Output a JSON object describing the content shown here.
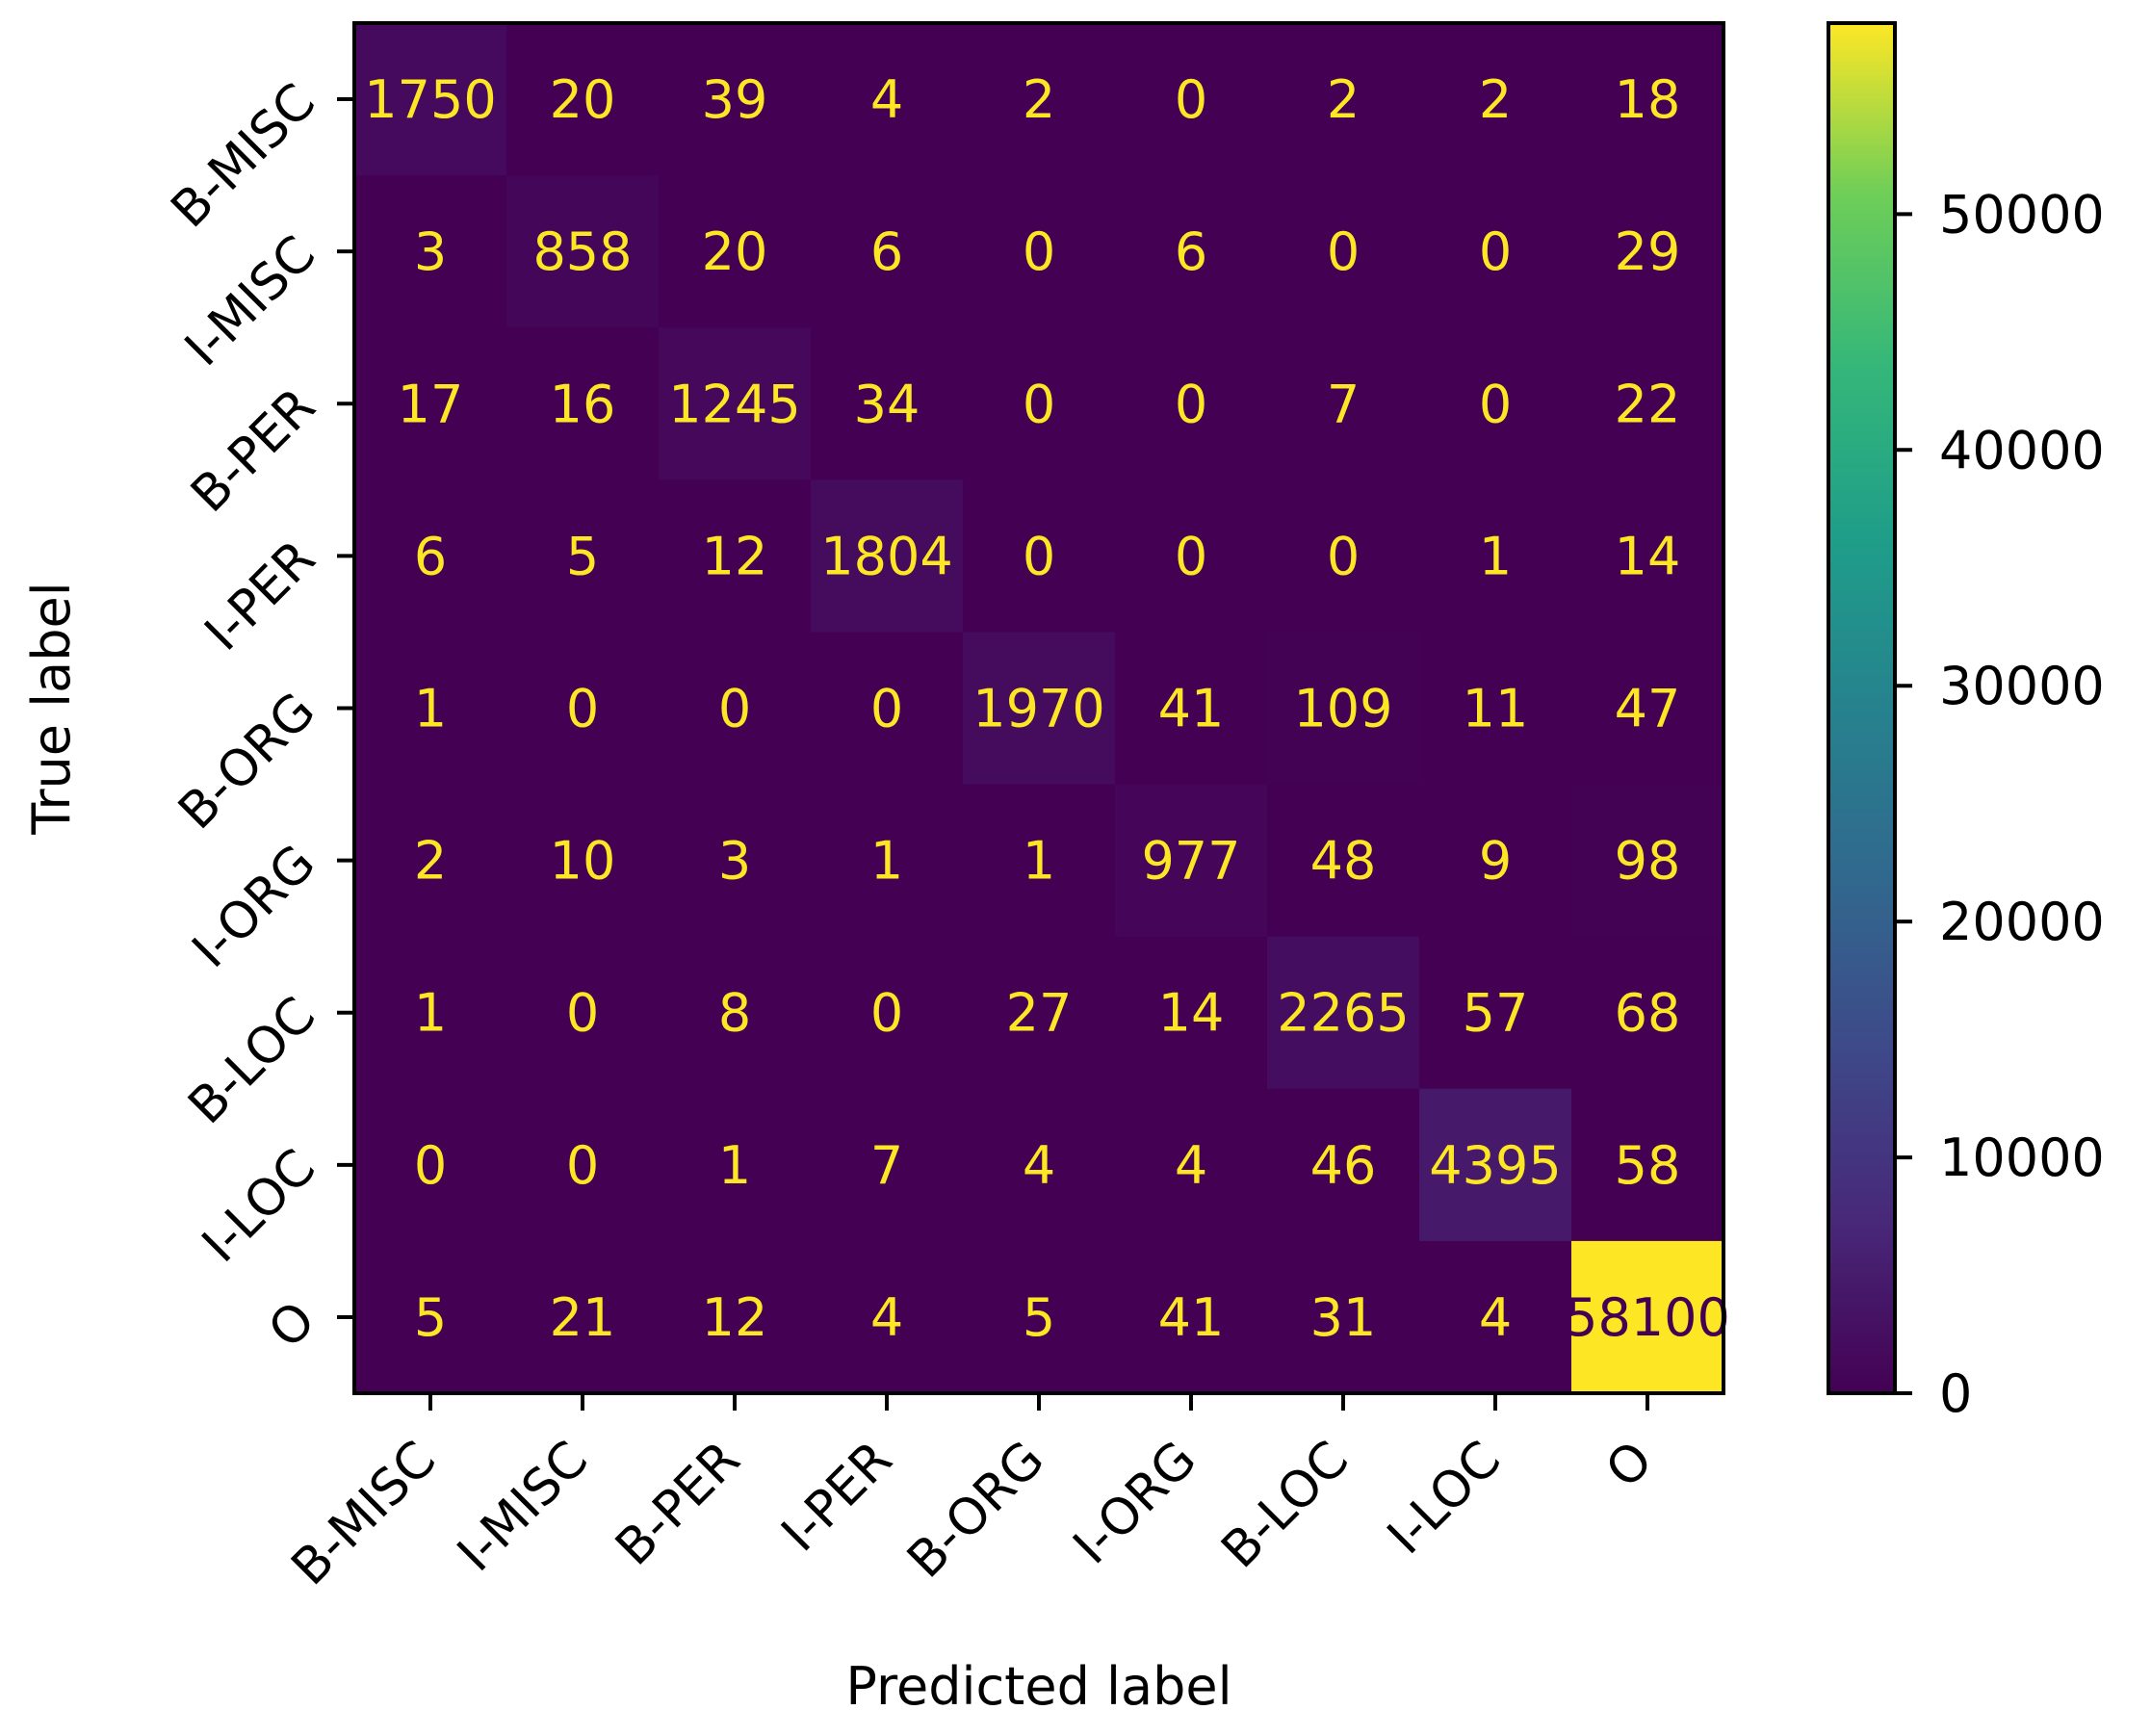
{
  "chart_data": {
    "type": "heatmap",
    "title": "",
    "xlabel": "Predicted label",
    "ylabel": "True label",
    "categories": [
      "B-MISC",
      "I-MISC",
      "B-PER",
      "I-PER",
      "B-ORG",
      "I-ORG",
      "B-LOC",
      "I-LOC",
      "O"
    ],
    "matrix": [
      [
        1750,
        20,
        39,
        4,
        2,
        0,
        2,
        2,
        18
      ],
      [
        3,
        858,
        20,
        6,
        0,
        6,
        0,
        0,
        29
      ],
      [
        17,
        16,
        1245,
        34,
        0,
        0,
        7,
        0,
        22
      ],
      [
        6,
        5,
        12,
        1804,
        0,
        0,
        0,
        1,
        14
      ],
      [
        1,
        0,
        0,
        0,
        1970,
        41,
        109,
        11,
        47
      ],
      [
        2,
        10,
        3,
        1,
        1,
        977,
        48,
        9,
        98
      ],
      [
        1,
        0,
        8,
        0,
        27,
        14,
        2265,
        57,
        68
      ],
      [
        0,
        0,
        1,
        7,
        4,
        4,
        46,
        4395,
        58
      ],
      [
        5,
        21,
        12,
        4,
        5,
        41,
        31,
        4,
        58100
      ]
    ],
    "cell_labels": [
      [
        "1750",
        "20",
        "39",
        "4",
        "2",
        "0",
        "2",
        "2",
        "18"
      ],
      [
        "3",
        "858",
        "20",
        "6",
        "0",
        "6",
        "0",
        "0",
        "29"
      ],
      [
        "17",
        "16",
        "1245",
        "34",
        "0",
        "0",
        "7",
        "0",
        "22"
      ],
      [
        "6",
        "5",
        "12",
        "1804",
        "0",
        "0",
        "0",
        "1",
        "14"
      ],
      [
        "1",
        "0",
        "0",
        "0",
        "1970",
        "41",
        "109",
        "11",
        "47"
      ],
      [
        "2",
        "10",
        "3",
        "1",
        "1",
        "977",
        "48",
        "9",
        "98"
      ],
      [
        "1",
        "0",
        "8",
        "0",
        "27",
        "14",
        "2265",
        "57",
        "68"
      ],
      [
        "0",
        "0",
        "1",
        "7",
        "4",
        "4",
        "46",
        "4395",
        "58"
      ],
      [
        "5",
        "21",
        "12",
        "4",
        "5",
        "41",
        "31",
        "4",
        "58100"
      ]
    ],
    "colormap": "viridis",
    "colorbar": {
      "range": [
        0,
        58100
      ],
      "ticks": [
        0,
        10000,
        20000,
        30000,
        40000,
        50000
      ],
      "tick_labels": [
        "0",
        "10000",
        "20000",
        "30000",
        "40000",
        "50000"
      ]
    },
    "text_colors": {
      "low": "#fde725",
      "high": "#440154"
    },
    "grid": false
  }
}
